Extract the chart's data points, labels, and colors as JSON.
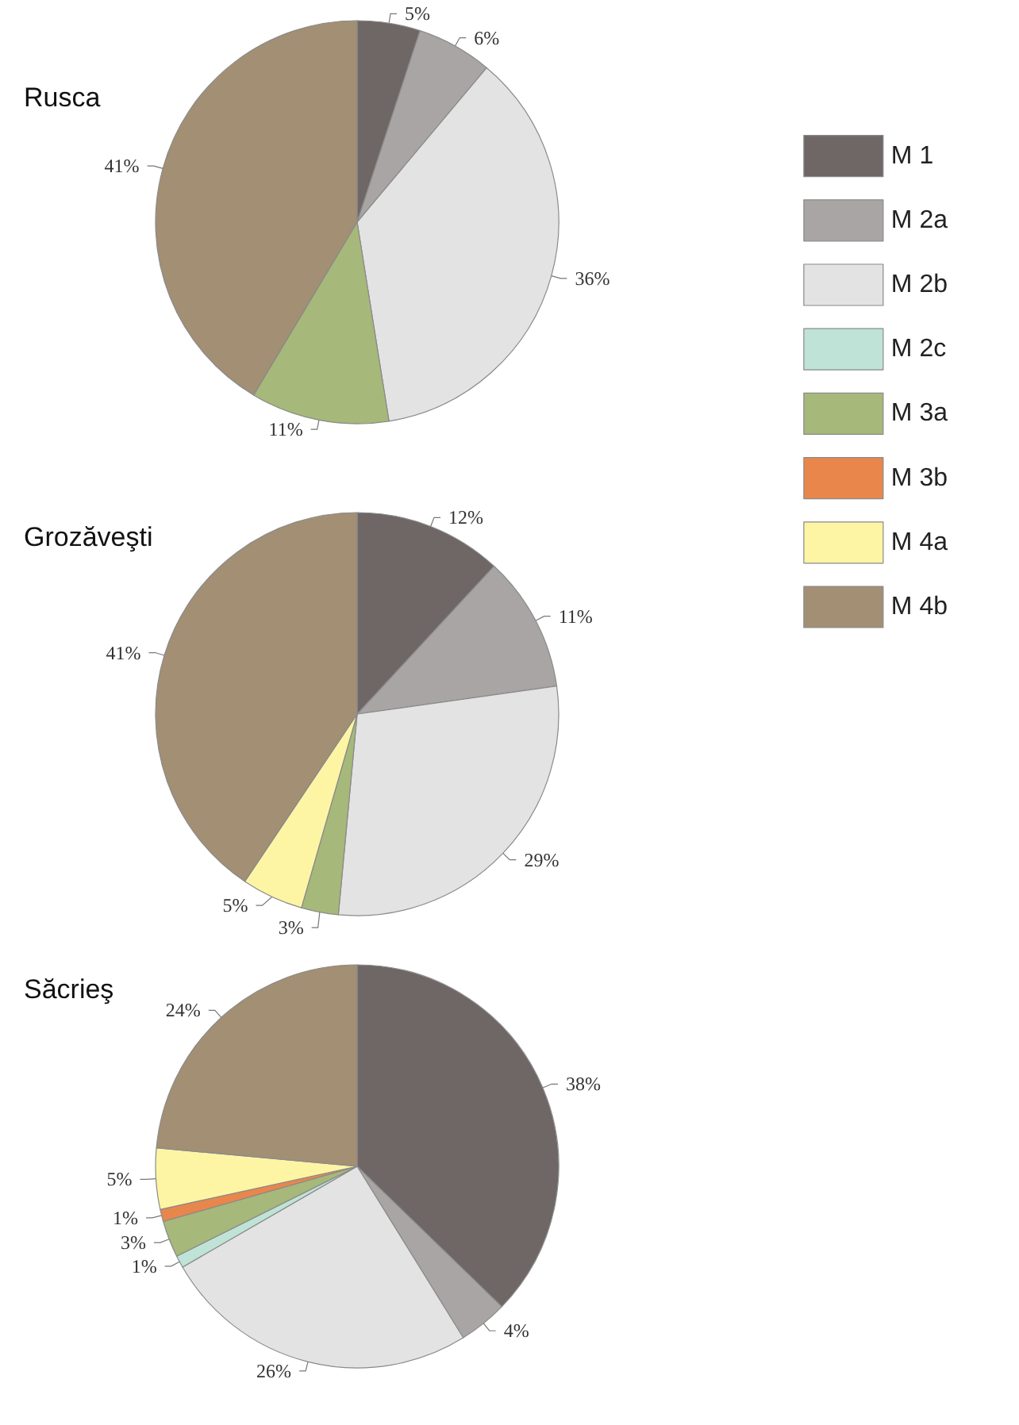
{
  "chart_data": [
    {
      "type": "pie",
      "title": "Rusca",
      "legend": "right",
      "categories": [
        "M 1",
        "M 2a",
        "M 2b",
        "M 2c",
        "M 3a",
        "M 3b",
        "M 4a",
        "M 4b"
      ],
      "values": [
        5,
        6,
        36,
        0,
        11,
        0,
        0,
        41
      ],
      "value_labels": [
        "5%",
        "6%",
        "36%",
        null,
        "11%",
        null,
        null,
        "41%"
      ],
      "colors": [
        "#6e6766",
        "#a8a5a4",
        "#e3e3e3",
        "#bfe3d6",
        "#a6b87a",
        "#e8864c",
        "#fdf5a4",
        "#a38f74"
      ]
    },
    {
      "type": "pie",
      "title": "Grozăveşti",
      "categories": [
        null,
        null,
        null,
        null,
        null,
        null
      ],
      "values": [
        12,
        11,
        29,
        3,
        5,
        41
      ],
      "value_labels": [
        "12%",
        "11%",
        "29%",
        "3%",
        "5%",
        "41%"
      ],
      "colors": [
        "#6e6766",
        "#a8a5a4",
        "#e3e3e3",
        "#a6b87a",
        "#fdf5a4",
        "#a38f74"
      ]
    },
    {
      "type": "pie",
      "title": "Săcrieş",
      "categories": [
        null,
        null,
        null,
        null,
        null,
        null,
        null,
        null
      ],
      "values": [
        38,
        4,
        26,
        1,
        3,
        1,
        5,
        24
      ],
      "value_labels": [
        "38%",
        "4%",
        "26%",
        "1%",
        "3%",
        "1%",
        "5%",
        "24%"
      ],
      "colors": [
        "#6e6766",
        "#a8a5a4",
        "#e3e3e3",
        "#bfe3d6",
        "#a6b87a",
        "#e8864c",
        "#fdf5a4",
        "#a38f74"
      ]
    }
  ]
}
